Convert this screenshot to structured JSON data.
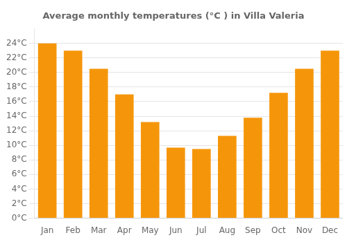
{
  "chart_data": {
    "type": "bar",
    "title": "Average monthly temperatures (°C ) in Villa Valeria",
    "categories": [
      "Jan",
      "Feb",
      "Mar",
      "Apr",
      "May",
      "Jun",
      "Jul",
      "Aug",
      "Sep",
      "Oct",
      "Nov",
      "Dec"
    ],
    "values": [
      24.0,
      23.0,
      20.5,
      17.0,
      13.2,
      9.7,
      9.5,
      11.3,
      13.8,
      17.2,
      20.5,
      23.0
    ],
    "color": "#F5960A",
    "ylim": [
      0,
      26
    ],
    "yticks": [
      {
        "value": 0,
        "label": "0°C"
      },
      {
        "value": 2,
        "label": "2°C"
      },
      {
        "value": 4,
        "label": "4°C"
      },
      {
        "value": 6,
        "label": "6°C"
      },
      {
        "value": 8,
        "label": "8°C"
      },
      {
        "value": 10,
        "label": "10°C"
      },
      {
        "value": 12,
        "label": "12°C"
      },
      {
        "value": 14,
        "label": "14°C"
      },
      {
        "value": 16,
        "label": "16°C"
      },
      {
        "value": 18,
        "label": "18°C"
      },
      {
        "value": 20,
        "label": "20°C"
      },
      {
        "value": 22,
        "label": "22°C"
      },
      {
        "value": 24,
        "label": "24°C"
      }
    ],
    "grid": true
  }
}
